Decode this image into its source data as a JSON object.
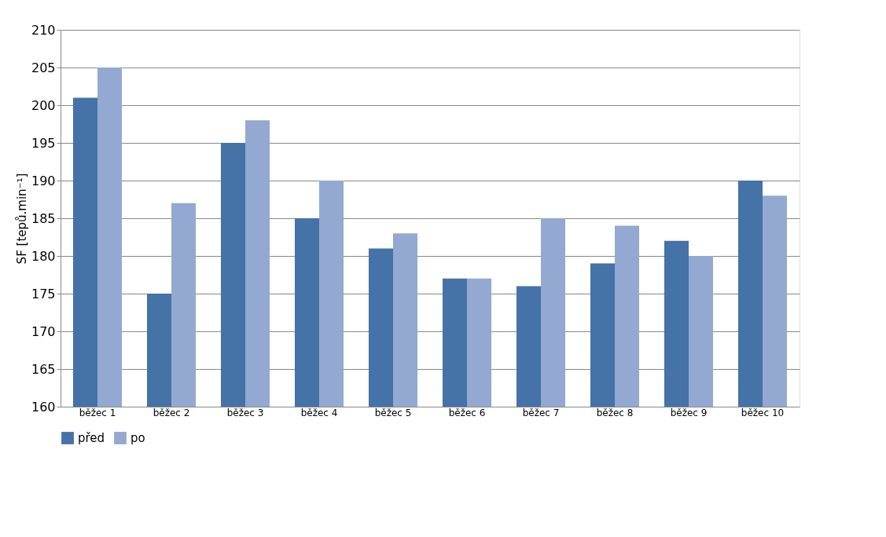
{
  "chart_data": {
    "type": "bar",
    "ylabel": "SF [tepů.min⁻¹]",
    "categories": [
      "běžec 1",
      "běžec 2",
      "běžec 3",
      "běžec 4",
      "běžec 5",
      "běžec 6",
      "běžec 7",
      "běžec 8",
      "běžec 9",
      "běžec 10"
    ],
    "series": [
      {
        "name": "před",
        "color": "#4572a7",
        "values": [
          201,
          175,
          195,
          185,
          181,
          177,
          176,
          179,
          182,
          190
        ]
      },
      {
        "name": "po",
        "color": "#93a9d1",
        "values": [
          205,
          187,
          198,
          190,
          183,
          177,
          185,
          184,
          180,
          188
        ]
      }
    ],
    "ylim": [
      160,
      210
    ],
    "yticks": [
      160,
      165,
      170,
      175,
      180,
      185,
      190,
      195,
      200,
      205,
      210
    ],
    "grid": "y",
    "legend": "bottom"
  }
}
